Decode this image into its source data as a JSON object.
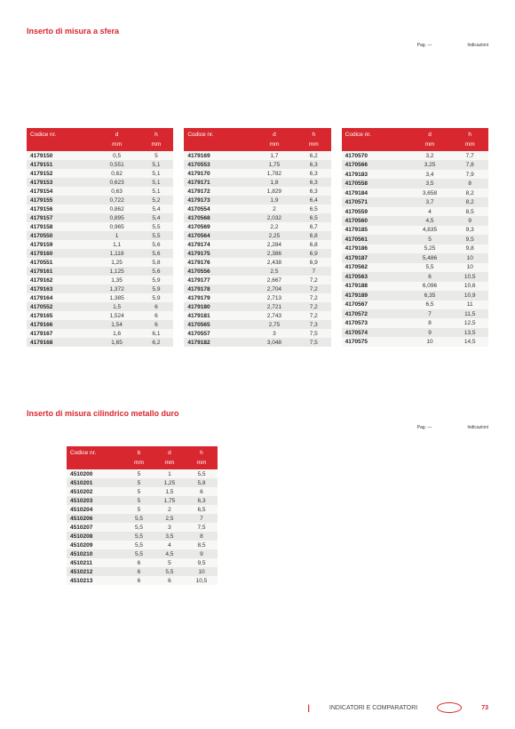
{
  "section1": {
    "title": "Inserto di misura a sfera",
    "meta_left": "Pag. —",
    "meta_right": "Indicazioni"
  },
  "section2": {
    "title": "Inserto di misura cilindrico metallo duro",
    "meta_left": "Pag. —",
    "meta_right": "Indicazioni"
  },
  "headers3": {
    "code": "Codice nr.",
    "c1": "d",
    "c2": "h",
    "u1": "mm",
    "u2": "mm"
  },
  "headers4": {
    "code": "Codice nr.",
    "c1": "b",
    "c2": "d",
    "c3": "h",
    "u1": "mm",
    "u2": "mm",
    "u3": "mm"
  },
  "tableA": [
    [
      "4179150",
      "0,5",
      "5"
    ],
    [
      "4179151",
      "0,551",
      "5,1"
    ],
    [
      "4179152",
      "0,62",
      "5,1"
    ],
    [
      "4179153",
      "0,623",
      "5,1"
    ],
    [
      "4179154",
      "0,63",
      "5,1"
    ],
    [
      "4179155",
      "0,722",
      "5,2"
    ],
    [
      "4179156",
      "0,862",
      "5,4"
    ],
    [
      "4179157",
      "0,895",
      "5,4"
    ],
    [
      "4179158",
      "0,965",
      "5,5"
    ],
    [
      "4170550",
      "1",
      "5,5"
    ],
    [
      "4179159",
      "1,1",
      "5,6"
    ],
    [
      "4179160",
      "1,118",
      "5,6"
    ],
    [
      "4170551",
      "1,25",
      "5,8"
    ],
    [
      "4179161",
      "1,125",
      "5,6"
    ],
    [
      "4179162",
      "1,35",
      "5,9"
    ],
    [
      "4179163",
      "1,372",
      "5,9"
    ],
    [
      "4179164",
      "1,385",
      "5,9"
    ],
    [
      "4170552",
      "1,5",
      "6"
    ],
    [
      "4179165",
      "1,524",
      "6"
    ],
    [
      "4179166",
      "1,54",
      "6"
    ],
    [
      "4179167",
      "1,6",
      "6,1"
    ],
    [
      "4179168",
      "1,65",
      "6,2"
    ]
  ],
  "tableB": [
    [
      "4179169",
      "1,7",
      "6,2"
    ],
    [
      "4170553",
      "1,75",
      "6,3"
    ],
    [
      "4179170",
      "1,782",
      "6,3"
    ],
    [
      "4179171",
      "1,8",
      "6,3"
    ],
    [
      "4179172",
      "1,829",
      "6,3"
    ],
    [
      "4179173",
      "1,9",
      "6,4"
    ],
    [
      "4170554",
      "2",
      "6,5"
    ],
    [
      "4170568",
      "2,032",
      "6,5"
    ],
    [
      "4170569",
      "2,2",
      "6,7"
    ],
    [
      "4170564",
      "2,25",
      "6,8"
    ],
    [
      "4179174",
      "2,284",
      "6,8"
    ],
    [
      "4179175",
      "2,386",
      "6,9"
    ],
    [
      "4179176",
      "2,438",
      "6,9"
    ],
    [
      "4170556",
      "2,5",
      "7"
    ],
    [
      "4179177",
      "2,667",
      "7,2"
    ],
    [
      "4179178",
      "2,704",
      "7,2"
    ],
    [
      "4179179",
      "2,713",
      "7,2"
    ],
    [
      "4179180",
      "2,721",
      "7,2"
    ],
    [
      "4179181",
      "2,743",
      "7,2"
    ],
    [
      "4170565",
      "2,75",
      "7,3"
    ],
    [
      "4170557",
      "3",
      "7,5"
    ],
    [
      "4179182",
      "3,048",
      "7,5"
    ]
  ],
  "tableC": [
    [
      "4170570",
      "3,2",
      "7,7"
    ],
    [
      "4170566",
      "3,25",
      "7,8"
    ],
    [
      "4179183",
      "3,4",
      "7,9"
    ],
    [
      "4170558",
      "3,5",
      "8"
    ],
    [
      "4179184",
      "3,658",
      "8,2"
    ],
    [
      "4170571",
      "3,7",
      "8,2"
    ],
    [
      "4170559",
      "4",
      "8,5"
    ],
    [
      "4170560",
      "4,5",
      "9"
    ],
    [
      "4179185",
      "4,835",
      "9,3"
    ],
    [
      "4170561",
      "5",
      "9,5"
    ],
    [
      "4179186",
      "5,25",
      "9,8"
    ],
    [
      "4179187",
      "5,486",
      "10"
    ],
    [
      "4170562",
      "5,5",
      "10"
    ],
    [
      "4170563",
      "6",
      "10,5"
    ],
    [
      "4179188",
      "6,096",
      "10,6"
    ],
    [
      "4179189",
      "6,35",
      "10,9"
    ],
    [
      "4170567",
      "6,5",
      "11"
    ],
    [
      "4170572",
      "7",
      "11,5"
    ],
    [
      "4170573",
      "8",
      "12,5"
    ],
    [
      "4170574",
      "9",
      "13,5"
    ],
    [
      "4170575",
      "10",
      "14,5"
    ]
  ],
  "tableD": [
    [
      "4510200",
      "5",
      "1",
      "5,5"
    ],
    [
      "4510201",
      "5",
      "1,25",
      "5,8"
    ],
    [
      "4510202",
      "5",
      "1,5",
      "6"
    ],
    [
      "4510203",
      "5",
      "1,75",
      "6,3"
    ],
    [
      "4510204",
      "5",
      "2",
      "6,5"
    ],
    [
      "4510206",
      "5,5",
      "2,5",
      "7"
    ],
    [
      "4510207",
      "5,5",
      "3",
      "7,5"
    ],
    [
      "4510208",
      "5,5",
      "3,5",
      "8"
    ],
    [
      "4510209",
      "5,5",
      "4",
      "8,5"
    ],
    [
      "4510210",
      "5,5",
      "4,5",
      "9"
    ],
    [
      "4510211",
      "6",
      "5",
      "9,5"
    ],
    [
      "4510212",
      "6",
      "5,5",
      "10"
    ],
    [
      "4510213",
      "6",
      "6",
      "10,5"
    ]
  ],
  "footer": {
    "label": "INDICATORI E COMPARATORI",
    "page_number": "73"
  }
}
